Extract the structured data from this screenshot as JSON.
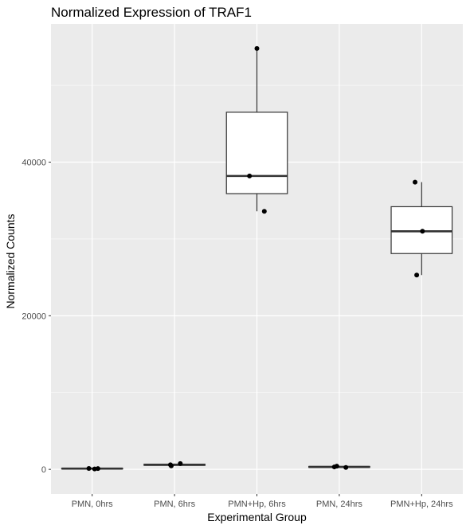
{
  "chart_data": {
    "type": "boxplot",
    "title": "Normalized Expression of TRAF1",
    "xlabel": "Experimental Group",
    "ylabel": "Normalized Counts",
    "ylim": [
      -3200,
      58000
    ],
    "yticks": [
      0,
      20000,
      40000
    ],
    "grid": true,
    "colors": {
      "panel": "#ebebeb",
      "grid_major": "#ffffff",
      "box_fill": "#ffffff",
      "box_stroke": "#333333",
      "point": "#000000"
    },
    "categories": [
      "PMN, 0hrs",
      "PMN, 6hrs",
      "PMN+Hp, 6hrs",
      "PMN, 24hrs",
      "PMN+Hp, 24hrs"
    ],
    "boxes": [
      {
        "category": "PMN, 0hrs",
        "min": 20,
        "q1": 60,
        "median": 100,
        "q3": 140,
        "max": 180
      },
      {
        "category": "PMN, 6hrs",
        "min": 450,
        "q1": 520,
        "median": 600,
        "q3": 680,
        "max": 760
      },
      {
        "category": "PMN+Hp, 6hrs",
        "min": 33600,
        "q1": 35900,
        "median": 38200,
        "q3": 46500,
        "max": 54800
      },
      {
        "category": "PMN, 24hrs",
        "min": 200,
        "q1": 260,
        "median": 320,
        "q3": 380,
        "max": 420
      },
      {
        "category": "PMN+Hp, 24hrs",
        "min": 25300,
        "q1": 28100,
        "median": 31000,
        "q3": 34200,
        "max": 37400
      }
    ],
    "points": [
      {
        "category": "PMN, 0hrs",
        "offset": -0.04,
        "y": 120
      },
      {
        "category": "PMN, 0hrs",
        "offset": 0.03,
        "y": 60
      },
      {
        "category": "PMN, 0hrs",
        "offset": 0.07,
        "y": 100
      },
      {
        "category": "PMN, 6hrs",
        "offset": -0.05,
        "y": 600
      },
      {
        "category": "PMN, 6hrs",
        "offset": -0.04,
        "y": 450
      },
      {
        "category": "PMN, 6hrs",
        "offset": 0.07,
        "y": 760
      },
      {
        "category": "PMN+Hp, 6hrs",
        "offset": 0.0,
        "y": 54800
      },
      {
        "category": "PMN+Hp, 6hrs",
        "offset": -0.09,
        "y": 38200
      },
      {
        "category": "PMN+Hp, 6hrs",
        "offset": 0.09,
        "y": 33600
      },
      {
        "category": "PMN, 24hrs",
        "offset": -0.06,
        "y": 320
      },
      {
        "category": "PMN, 24hrs",
        "offset": -0.03,
        "y": 420
      },
      {
        "category": "PMN, 24hrs",
        "offset": 0.08,
        "y": 250
      },
      {
        "category": "PMN+Hp, 24hrs",
        "offset": -0.08,
        "y": 37400
      },
      {
        "category": "PMN+Hp, 24hrs",
        "offset": 0.01,
        "y": 31000
      },
      {
        "category": "PMN+Hp, 24hrs",
        "offset": -0.06,
        "y": 25300
      }
    ]
  }
}
